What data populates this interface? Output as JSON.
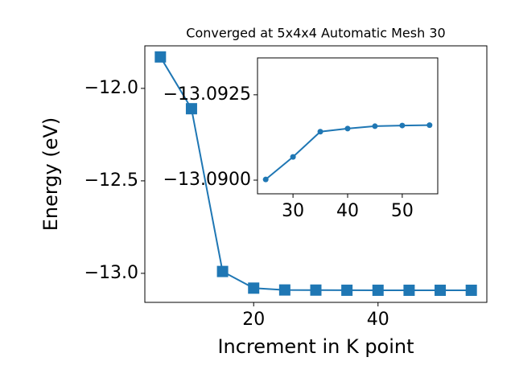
{
  "chart_data": [
    {
      "type": "line",
      "title": "Converged at 5x4x4 Automatic Mesh 30",
      "xlabel": "Increment in K point",
      "ylabel": "Energy (eV)",
      "x": [
        5,
        10,
        15,
        20,
        25,
        30,
        35,
        40,
        45,
        50,
        55
      ],
      "series": [
        {
          "color": "#1f77b4",
          "marker": "square",
          "values": [
            -11.83,
            -12.11,
            -12.99,
            -13.08,
            -13.09002,
            -13.09068,
            -13.09142,
            -13.09151,
            -13.09158,
            -13.0916,
            -13.09161
          ]
        }
      ],
      "xlim": [
        2.5,
        57.5
      ],
      "ylim": [
        -13.157,
        -11.77
      ],
      "xticks": [
        20,
        40
      ],
      "yticks": [
        {
          "value": -12.0,
          "label": "−12.0"
        },
        {
          "value": -12.5,
          "label": "−12.5"
        },
        {
          "value": -13.0,
          "label": "−13.0"
        }
      ]
    },
    {
      "type": "line",
      "x": [
        25,
        30,
        35,
        40,
        45,
        50,
        55
      ],
      "series": [
        {
          "color": "#1f77b4",
          "marker": "circle",
          "values": [
            -13.09002,
            -13.09068,
            -13.09142,
            -13.09151,
            -13.09158,
            -13.0916,
            -13.09161
          ]
        }
      ],
      "xlim": [
        23.5,
        56.5
      ],
      "ylim": [
        -13.0896,
        -13.09358
      ],
      "xticks": [
        30,
        40,
        50
      ],
      "yticks": [
        {
          "value": -13.0925,
          "label": "−13.0925"
        },
        {
          "value": -13.09,
          "label": "−13.0900"
        }
      ]
    }
  ]
}
